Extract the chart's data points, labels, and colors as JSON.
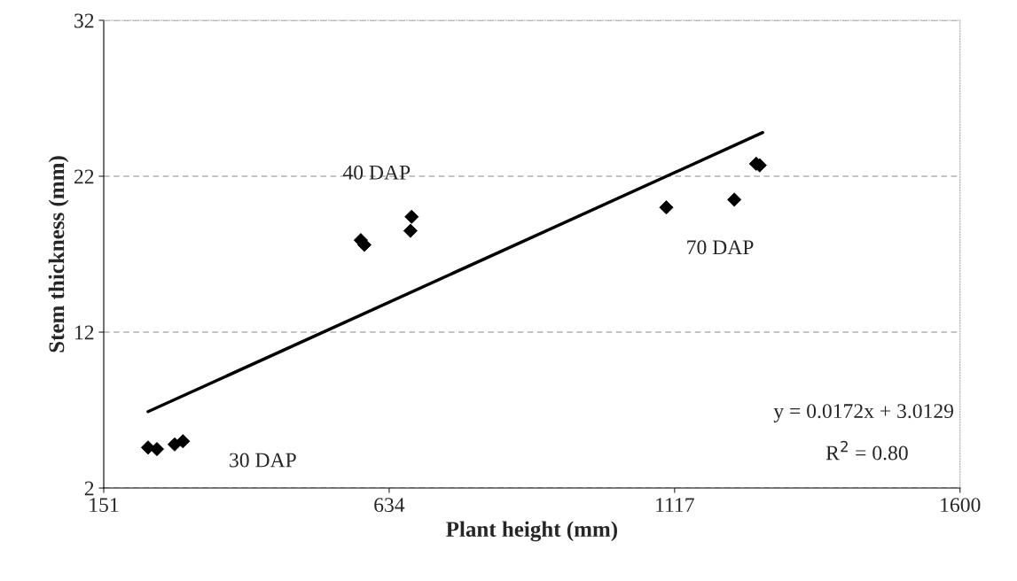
{
  "chart_data": {
    "type": "scatter",
    "xlabel": "Plant height (mm)",
    "ylabel": "Stem thickness (mm)",
    "xlim": [
      151,
      1600
    ],
    "xticks": [
      151,
      634,
      1117,
      1600
    ],
    "ylim": [
      2,
      32
    ],
    "yticks": [
      2,
      12,
      22,
      32
    ],
    "grid": "y",
    "series": [
      {
        "marker": "diamond",
        "color": "#000000",
        "x": [
          226,
          241,
          271,
          285,
          586,
          592,
          672,
          670,
          1103,
          1218,
          1255,
          1261
        ],
        "values": [
          4.6,
          4.5,
          4.8,
          5.0,
          17.9,
          17.6,
          19.4,
          18.5,
          20.0,
          20.5,
          22.8,
          22.7
        ]
      },
      {
        "type": "line",
        "color": "#000000",
        "line_style": "solid",
        "x": [
          226,
          1266
        ],
        "values": [
          6.9,
          24.8
        ]
      }
    ],
    "annotations": [
      "30 DAP",
      "40 DAP",
      "70 DAP",
      "y = 0.0172x + 3.0129",
      "R$^{2}$ = 0.80"
    ]
  }
}
